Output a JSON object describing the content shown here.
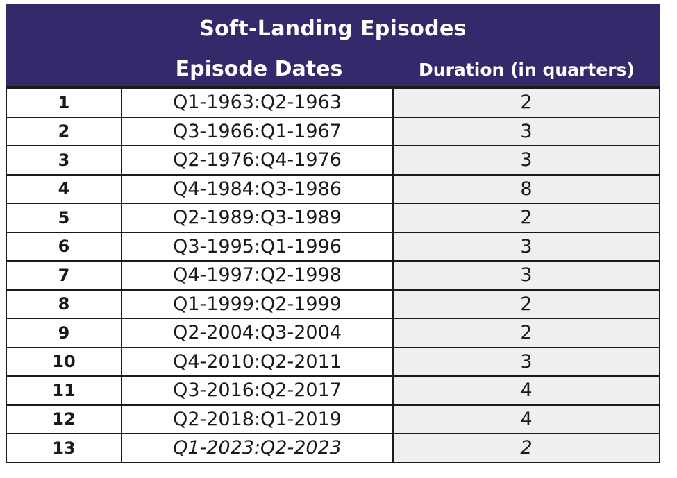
{
  "table": {
    "title": "Soft-Landing Episodes",
    "columns": {
      "dates": "Episode Dates",
      "duration": "Duration (in quarters)"
    },
    "rows": [
      {
        "num": "1",
        "dates": "Q1-1963:Q2-1963",
        "duration": "2"
      },
      {
        "num": "2",
        "dates": "Q3-1966:Q1-1967",
        "duration": "3"
      },
      {
        "num": "3",
        "dates": "Q2-1976:Q4-1976",
        "duration": "3"
      },
      {
        "num": "4",
        "dates": "Q4-1984:Q3-1986",
        "duration": "8"
      },
      {
        "num": "5",
        "dates": "Q2-1989:Q3-1989",
        "duration": "2"
      },
      {
        "num": "6",
        "dates": "Q3-1995:Q1-1996",
        "duration": "3"
      },
      {
        "num": "7",
        "dates": "Q4-1997:Q2-1998",
        "duration": "3"
      },
      {
        "num": "8",
        "dates": "Q1-1999:Q2-1999",
        "duration": "2"
      },
      {
        "num": "9",
        "dates": "Q2-2004:Q3-2004",
        "duration": "2"
      },
      {
        "num": "10",
        "dates": "Q4-2010:Q2-2011",
        "duration": "3"
      },
      {
        "num": "11",
        "dates": "Q3-2016:Q2-2017",
        "duration": "4"
      },
      {
        "num": "12",
        "dates": "Q2-2018:Q1-2019",
        "duration": "4"
      },
      {
        "num": "13",
        "dates": "Q1-2023:Q2-2023",
        "duration": "2",
        "italic": true
      }
    ],
    "colors": {
      "header_bg": "#342a6b",
      "header_text": "#ffffff",
      "duration_col_bg": "#efefef",
      "border": "#1a1a1a"
    }
  }
}
